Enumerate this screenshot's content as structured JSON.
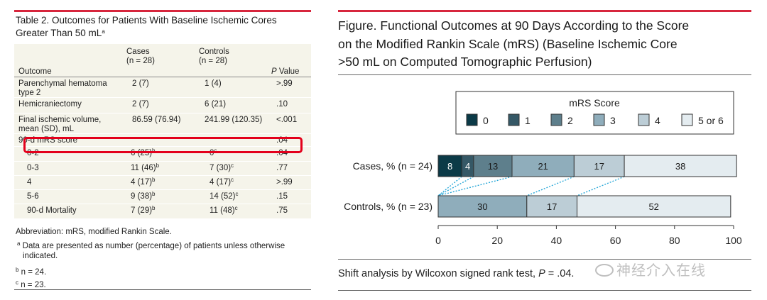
{
  "table": {
    "title": "Table 2. Outcomes for Patients With Baseline Ischemic Cores Greater Than 50 mL",
    "title_sup": "a",
    "headers": {
      "outcome": "Outcome",
      "cases_l1": "Cases",
      "cases_l2": "(n = 28)",
      "controls_l1": "Controls",
      "controls_l2": "(n = 28)",
      "p_italic": "P",
      "p_rest": " Value"
    },
    "rows": [
      {
        "label": "Parenchymal hematoma type 2",
        "cases": "2 (7)",
        "cases_sup": "",
        "controls": "1 (4)",
        "controls_sup": "",
        "p": ">.99"
      },
      {
        "label": "Hemicraniectomy",
        "cases": "2 (7)",
        "cases_sup": "",
        "controls": "6 (21)",
        "controls_sup": "",
        "p": ".10"
      },
      {
        "label": "Final ischemic volume, mean (SD), mL",
        "cases": "86.59 (76.94)",
        "cases_sup": "",
        "controls": "241.99 (120.35)",
        "controls_sup": "",
        "p": "<.001"
      },
      {
        "label": "90-d mRS score",
        "cases": "",
        "cases_sup": "",
        "controls": "",
        "controls_sup": "",
        "p": ".04"
      },
      {
        "label": "0-2",
        "cases": "6 (25)",
        "cases_sup": "b",
        "controls": "0",
        "controls_sup": "c",
        "p": ".04"
      },
      {
        "label": "0-3",
        "cases": "11 (46)",
        "cases_sup": "b",
        "controls": "7 (30)",
        "controls_sup": "c",
        "p": ".77"
      },
      {
        "label": "4",
        "cases": "4 (17)",
        "cases_sup": "b",
        "controls": "4 (17)",
        "controls_sup": "c",
        "p": ">.99"
      },
      {
        "label": "5-6",
        "cases": "9 (38)",
        "cases_sup": "b",
        "controls": "14 (52)",
        "controls_sup": "c",
        "p": ".15"
      },
      {
        "label": "90-d Mortality",
        "cases": "7 (29)",
        "cases_sup": "b",
        "controls": "11 (48)",
        "controls_sup": "c",
        "p": ".75"
      }
    ],
    "abbreviation": "Abbreviation: mRS, modified Rankin Scale.",
    "footnotes": [
      {
        "mark": "a",
        "text": "Data are presented as number (percentage) of patients unless otherwise indicated."
      },
      {
        "mark": "b",
        "text": "n = 24."
      },
      {
        "mark": "c",
        "text": "n = 23."
      }
    ]
  },
  "figure": {
    "title_lines": [
      "Figure. Functional Outcomes at 90 Days According to the Score",
      "on the Modified Rankin Scale (mRS) (Baseline Ischemic Core",
      ">50 mL on Computed Tomographic Perfusion)"
    ],
    "caption_prefix": "Shift analysis by Wilcoxon signed rank test, ",
    "caption_p": "P",
    "caption_suffix": " = .04."
  },
  "chart_data": {
    "type": "bar",
    "orientation": "horizontal-stacked",
    "legend_title": "mRS Score",
    "legend_position": "top",
    "categories": [
      "Cases, % (n = 24)",
      "Controls, % (n = 23)"
    ],
    "series": [
      {
        "name": "0",
        "color": "#0b3a47",
        "values": [
          8,
          0
        ]
      },
      {
        "name": "1",
        "color": "#355866",
        "values": [
          4,
          0
        ]
      },
      {
        "name": "2",
        "color": "#5e7f8c",
        "values": [
          13,
          0
        ]
      },
      {
        "name": "3",
        "color": "#8fadbb",
        "values": [
          21,
          30
        ]
      },
      {
        "name": "4",
        "color": "#bccdd6",
        "values": [
          17,
          17
        ]
      },
      {
        "name": "5 or 6",
        "color": "#e4ecf0",
        "values": [
          38,
          52
        ]
      }
    ],
    "labels": [
      [
        "8",
        "4",
        "13",
        "21",
        "17",
        "38"
      ],
      [
        "",
        "",
        "",
        "30",
        "17",
        "52"
      ]
    ],
    "label_colors": [
      "#ffffff",
      "#ffffff",
      "#1a1a1a",
      "#1a1a1a",
      "#1a1a1a",
      "#1a1a1a"
    ],
    "xlim": [
      0,
      100
    ],
    "xticks": [
      0,
      20,
      40,
      60,
      80,
      100
    ],
    "connector_color": "#2aa8d8"
  },
  "watermark": "神经介入在线"
}
